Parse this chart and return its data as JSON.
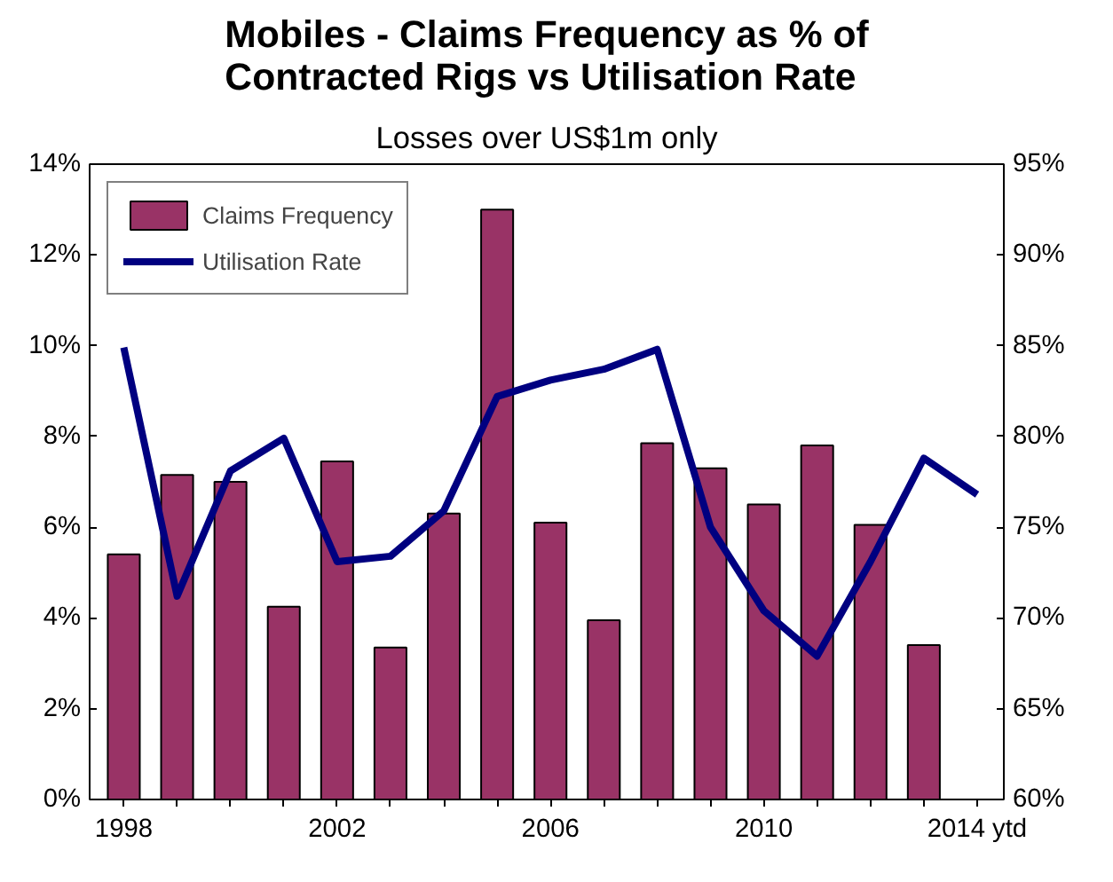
{
  "chart_data": {
    "type": "bar",
    "title": "Mobiles - Claims Frequency as % of\nContracted Rigs vs Utilisation Rate",
    "subtitle": "Losses over US$1m only",
    "categories": [
      "1998",
      null,
      null,
      null,
      "2002",
      null,
      null,
      null,
      "2006",
      null,
      null,
      null,
      "2010",
      null,
      null,
      null,
      "2014 ytd"
    ],
    "series": [
      {
        "name": "Claims Frequency",
        "color": "#993366",
        "values": [
          5.4,
          7.15,
          7.0,
          4.25,
          7.45,
          3.35,
          6.3,
          13.0,
          6.1,
          3.95,
          7.85,
          7.3,
          6.5,
          7.8,
          6.05,
          3.4,
          null
        ]
      },
      {
        "name": "Utilisation Rate",
        "type": "line",
        "axis": "y2",
        "color": "#000080",
        "values": [
          84.9,
          71.2,
          78.1,
          79.9,
          73.1,
          73.4,
          75.9,
          82.2,
          83.1,
          83.7,
          84.8,
          75.0,
          70.4,
          67.9,
          73.1,
          78.8,
          76.8
        ]
      }
    ],
    "ylim": [
      0,
      14
    ],
    "yticks": [
      {
        "value": 0,
        "label": "0%"
      },
      {
        "value": 2,
        "label": "2%"
      },
      {
        "value": 4,
        "label": "4%"
      },
      {
        "value": 6,
        "label": "6%"
      },
      {
        "value": 8,
        "label": "8%"
      },
      {
        "value": 10,
        "label": "10%"
      },
      {
        "value": 12,
        "label": "12%"
      },
      {
        "value": 14,
        "label": "14%"
      }
    ],
    "y2lim": [
      60,
      95
    ],
    "y2ticks": [
      {
        "value": 60,
        "label": "60%"
      },
      {
        "value": 65,
        "label": "65%"
      },
      {
        "value": 70,
        "label": "70%"
      },
      {
        "value": 75,
        "label": "75%"
      },
      {
        "value": 80,
        "label": "80%"
      },
      {
        "value": 85,
        "label": "85%"
      },
      {
        "value": 90,
        "label": "90%"
      },
      {
        "value": 95,
        "label": "95%"
      }
    ],
    "legend": "top left",
    "grid": false
  }
}
